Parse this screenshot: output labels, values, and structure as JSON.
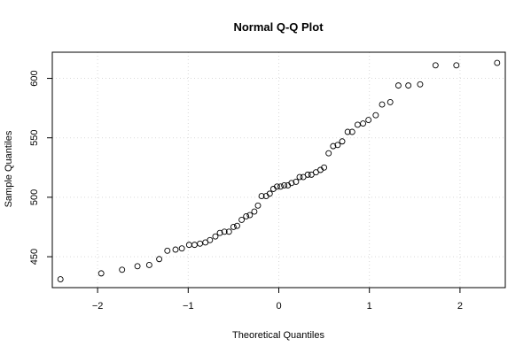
{
  "chart_data": {
    "type": "scatter",
    "title": "Normal Q-Q Plot",
    "xlabel": "Theoretical Quantiles",
    "ylabel": "Sample Quantiles",
    "xlim": [
      -2.5,
      2.5
    ],
    "ylim": [
      424,
      622
    ],
    "x_ticks": [
      -2,
      -1,
      0,
      1,
      2
    ],
    "x_tick_labels": [
      "−2",
      "−1",
      "0",
      "1",
      "2"
    ],
    "y_ticks": [
      450,
      500,
      550,
      600
    ],
    "y_tick_labels": [
      "450",
      "500",
      "550",
      "600"
    ],
    "grid": true,
    "points": [
      {
        "x": -2.41,
        "y": 431
      },
      {
        "x": -1.96,
        "y": 436
      },
      {
        "x": -1.73,
        "y": 439
      },
      {
        "x": -1.56,
        "y": 442
      },
      {
        "x": -1.43,
        "y": 443
      },
      {
        "x": -1.32,
        "y": 448
      },
      {
        "x": -1.23,
        "y": 455
      },
      {
        "x": -1.14,
        "y": 456
      },
      {
        "x": -1.07,
        "y": 457
      },
      {
        "x": -0.99,
        "y": 460
      },
      {
        "x": -0.93,
        "y": 460
      },
      {
        "x": -0.87,
        "y": 461
      },
      {
        "x": -0.81,
        "y": 462
      },
      {
        "x": -0.76,
        "y": 464
      },
      {
        "x": -0.7,
        "y": 467
      },
      {
        "x": -0.65,
        "y": 470
      },
      {
        "x": -0.6,
        "y": 471
      },
      {
        "x": -0.55,
        "y": 471
      },
      {
        "x": -0.5,
        "y": 475
      },
      {
        "x": -0.46,
        "y": 476
      },
      {
        "x": -0.41,
        "y": 481
      },
      {
        "x": -0.36,
        "y": 484
      },
      {
        "x": -0.32,
        "y": 485
      },
      {
        "x": -0.27,
        "y": 488
      },
      {
        "x": -0.23,
        "y": 493
      },
      {
        "x": -0.19,
        "y": 501
      },
      {
        "x": -0.14,
        "y": 501
      },
      {
        "x": -0.1,
        "y": 503
      },
      {
        "x": -0.06,
        "y": 507
      },
      {
        "x": -0.02,
        "y": 509
      },
      {
        "x": 0.02,
        "y": 509
      },
      {
        "x": 0.06,
        "y": 510
      },
      {
        "x": 0.1,
        "y": 510
      },
      {
        "x": 0.14,
        "y": 512
      },
      {
        "x": 0.19,
        "y": 513
      },
      {
        "x": 0.23,
        "y": 517
      },
      {
        "x": 0.27,
        "y": 517
      },
      {
        "x": 0.32,
        "y": 519
      },
      {
        "x": 0.36,
        "y": 519
      },
      {
        "x": 0.41,
        "y": 521
      },
      {
        "x": 0.46,
        "y": 523
      },
      {
        "x": 0.5,
        "y": 525
      },
      {
        "x": 0.55,
        "y": 537
      },
      {
        "x": 0.6,
        "y": 543
      },
      {
        "x": 0.65,
        "y": 544
      },
      {
        "x": 0.7,
        "y": 547
      },
      {
        "x": 0.76,
        "y": 555
      },
      {
        "x": 0.81,
        "y": 555
      },
      {
        "x": 0.87,
        "y": 561
      },
      {
        "x": 0.93,
        "y": 562
      },
      {
        "x": 0.99,
        "y": 565
      },
      {
        "x": 1.07,
        "y": 569
      },
      {
        "x": 1.14,
        "y": 578
      },
      {
        "x": 1.23,
        "y": 580
      },
      {
        "x": 1.32,
        "y": 594
      },
      {
        "x": 1.43,
        "y": 594
      },
      {
        "x": 1.56,
        "y": 595
      },
      {
        "x": 1.73,
        "y": 611
      },
      {
        "x": 1.96,
        "y": 611
      },
      {
        "x": 2.41,
        "y": 613
      }
    ]
  }
}
